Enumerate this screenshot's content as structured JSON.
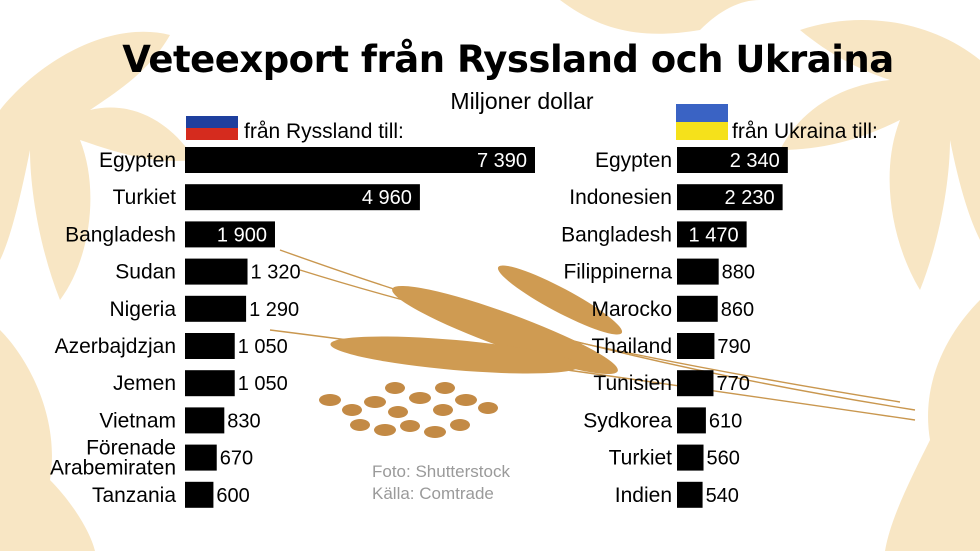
{
  "title": "Veteexport från Ryssland och Ukraina",
  "subtitle": "Miljoner dollar",
  "colors": {
    "bar": "#000000",
    "background": "#ffffff",
    "decor": "#f7e4bf",
    "wheat": "#c9974f"
  },
  "russia": {
    "heading": "från Ryssland till:",
    "flag_colors": [
      "#ffffff",
      "#1e3f9e",
      "#d52b1e"
    ]
  },
  "ukraine": {
    "heading": "från Ukraina till:",
    "flag_colors": [
      "#3a63c4",
      "#f5e11b"
    ]
  },
  "credits": {
    "photo": "Foto: Shutterstock",
    "source": "Källa: Comtrade"
  },
  "chart_data": [
    {
      "type": "bar",
      "orientation": "horizontal",
      "panel": "russia",
      "categories": [
        "Egypten",
        "Turkiet",
        "Bangladesh",
        "Sudan",
        "Nigeria",
        "Azerbajdzjan",
        "Jemen",
        "Vietnam",
        "Förenade Arabemiraten",
        "Tanzania"
      ],
      "values": [
        7390,
        4960,
        1900,
        1320,
        1290,
        1050,
        1050,
        830,
        670,
        600
      ],
      "value_labels": [
        "7 390",
        "4 960",
        "1 900",
        "1 320",
        "1 290",
        "1 050",
        "1 050",
        "830",
        "670",
        "600"
      ]
    },
    {
      "type": "bar",
      "orientation": "horizontal",
      "panel": "ukraine",
      "categories": [
        "Egypten",
        "Indonesien",
        "Bangladesh",
        "Filippinerna",
        "Marocko",
        "Thailand",
        "Tunisien",
        "Sydkorea",
        "Turkiet",
        "Indien"
      ],
      "values": [
        2340,
        2230,
        1470,
        880,
        860,
        790,
        770,
        610,
        560,
        540
      ],
      "value_labels": [
        "2 340",
        "2 230",
        "1 470",
        "880",
        "860",
        "790",
        "770",
        "610",
        "560",
        "540"
      ]
    }
  ]
}
